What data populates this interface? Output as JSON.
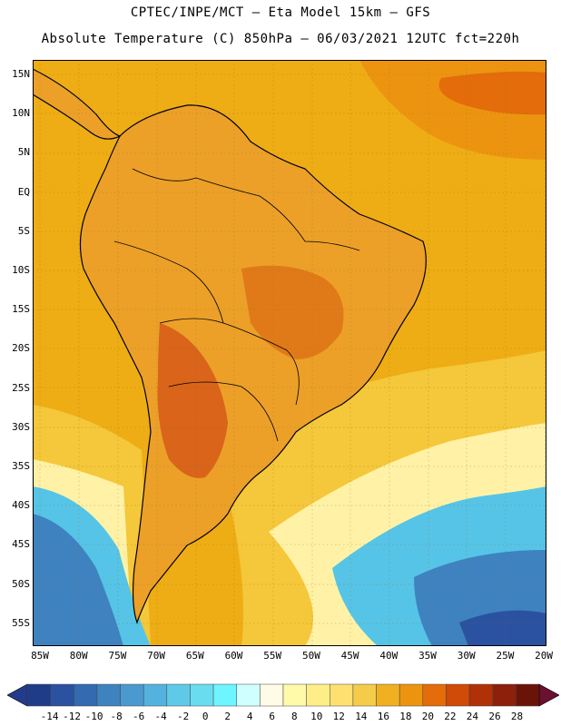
{
  "header": {
    "line1": "CPTEC/INPE/MCT –  Eta Model 15km – GFS",
    "line2": "Absolute Temperature (C) 850hPa – 06/03/2021 12UTC fct=220h"
  },
  "axes": {
    "lat_labels": [
      "15N",
      "10N",
      "5N",
      "EQ",
      "5S",
      "10S",
      "15S",
      "20S",
      "25S",
      "30S",
      "35S",
      "40S",
      "45S",
      "50S",
      "55S"
    ],
    "lon_labels": [
      "85W",
      "80W",
      "75W",
      "70W",
      "65W",
      "60W",
      "55W",
      "50W",
      "45W",
      "40W",
      "35W",
      "30W",
      "25W",
      "20W"
    ]
  },
  "colorbar": {
    "ticks": [
      "-14",
      "-12",
      "-10",
      "-8",
      "-6",
      "-4",
      "-2",
      "0",
      "2",
      "4",
      "6",
      "8",
      "10",
      "12",
      "14",
      "16",
      "18",
      "20",
      "22",
      "24",
      "26",
      "28"
    ],
    "colors": [
      "#1f3c88",
      "#2a52a0",
      "#336ab0",
      "#3e82c0",
      "#4a9ad0",
      "#55b2de",
      "#5fcae8",
      "#6adcf0",
      "#6ef5ff",
      "#cfffff",
      "#fffbe6",
      "#fffaaa",
      "#ffee88",
      "#fde070",
      "#f5cc4a",
      "#f0b020",
      "#ec9410",
      "#e46c0a",
      "#d04a08",
      "#b03008",
      "#8c200a",
      "#6a1408"
    ]
  },
  "colors": {
    "ocean_warm": "#eead14",
    "ocean_mid": "#f5c73a",
    "ocean_cool": "#fff2a6",
    "ocean_cold": "#56c4e6",
    "continent": "#eca028",
    "hot_core": "#d9641a"
  }
}
